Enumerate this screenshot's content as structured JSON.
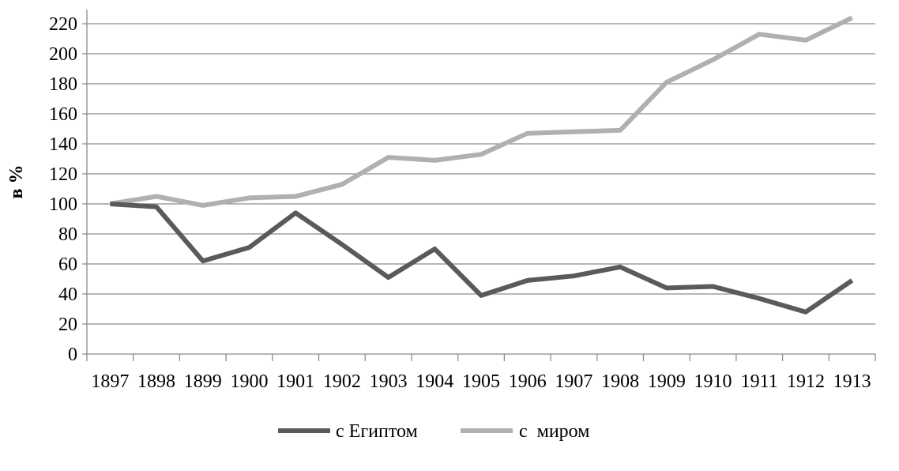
{
  "chart_data": {
    "type": "line",
    "title": "",
    "xlabel": "",
    "ylabel": "в %",
    "ylim": [
      0,
      220
    ],
    "yticks": [
      0,
      20,
      40,
      60,
      80,
      100,
      120,
      140,
      160,
      180,
      200,
      220
    ],
    "categories": [
      "1897",
      "1898",
      "1899",
      "1900",
      "1901",
      "1902",
      "1903",
      "1904",
      "1905",
      "1906",
      "1907",
      "1908",
      "1909",
      "1910",
      "1911",
      "1912",
      "1913"
    ],
    "grid": true,
    "legend_position": "bottom",
    "series": [
      {
        "name": "с Египтом",
        "color": "#5a5a5a",
        "values": [
          100,
          98,
          62,
          71,
          94,
          73,
          51,
          70,
          39,
          49,
          52,
          58,
          44,
          45,
          37,
          28,
          49
        ]
      },
      {
        "name": "с  миром",
        "color": "#b0b0b0",
        "values": [
          100,
          105,
          99,
          104,
          105,
          113,
          131,
          129,
          133,
          147,
          148,
          149,
          181,
          196,
          213,
          209,
          224
        ]
      }
    ]
  }
}
